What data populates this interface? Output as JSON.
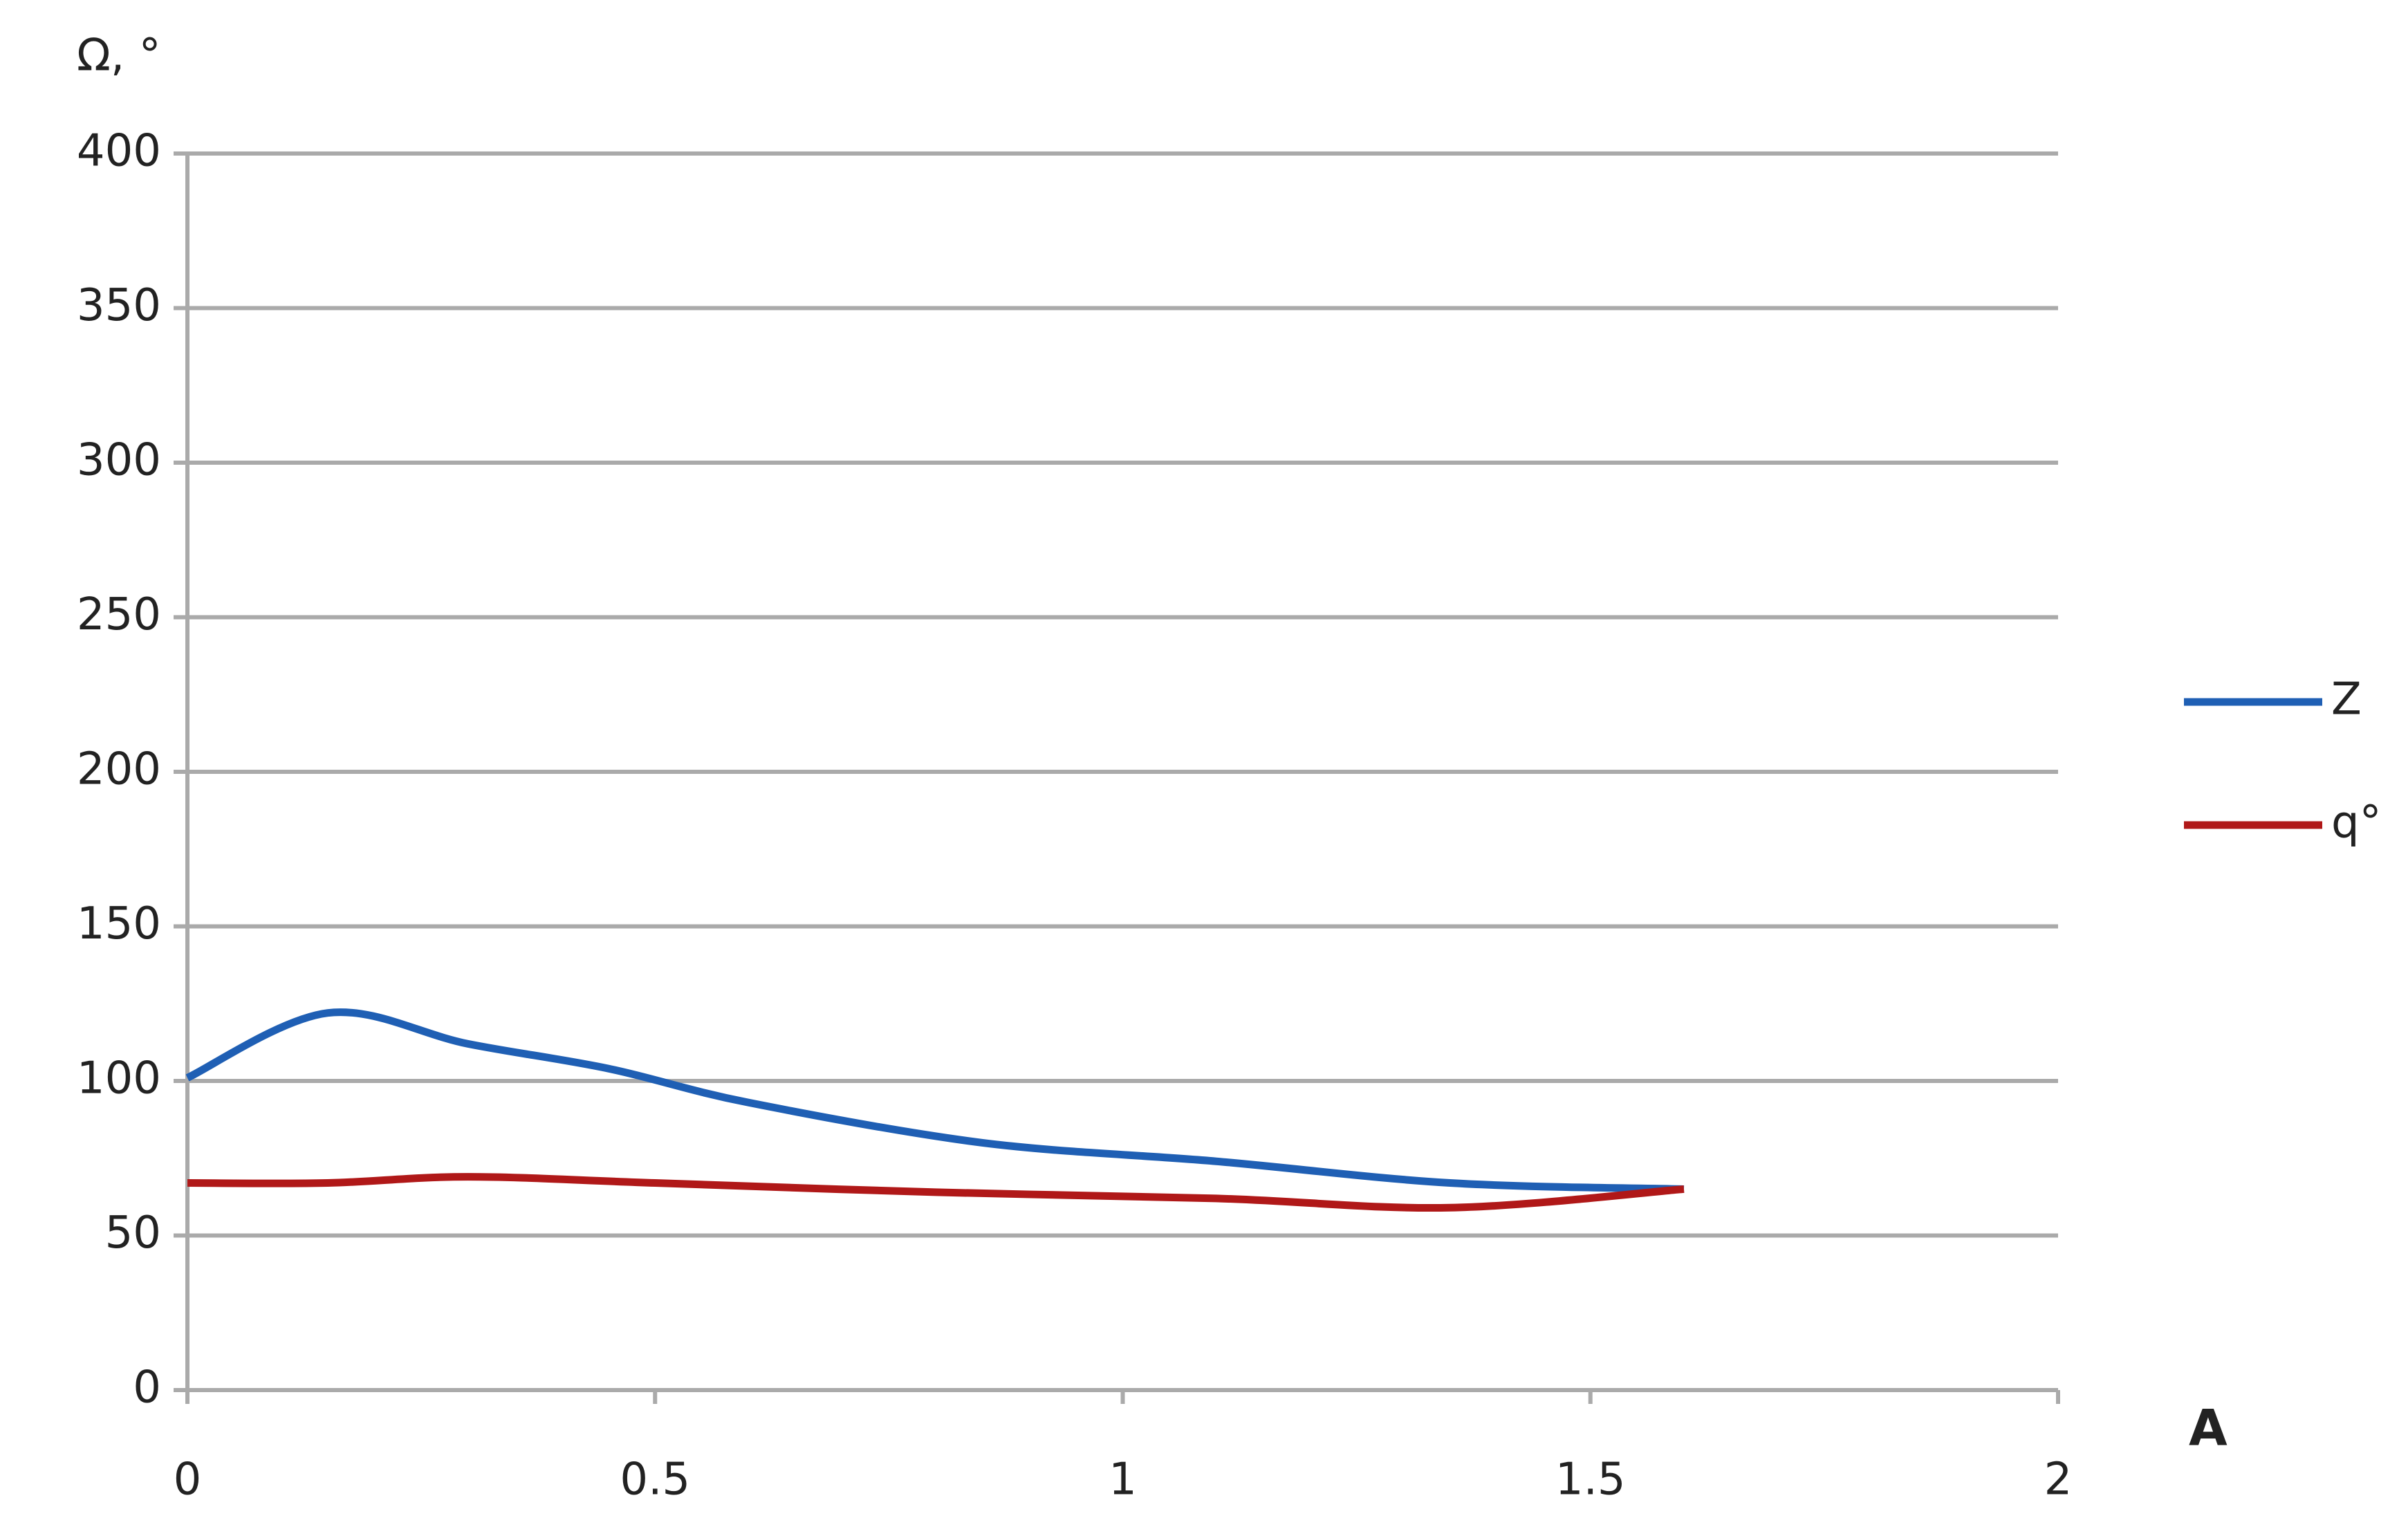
{
  "chart_data": {
    "type": "line",
    "y_label": "Ω, °",
    "x_label": "A",
    "xlim": [
      0,
      2
    ],
    "xticks": [
      0,
      0.5,
      1,
      1.5,
      2
    ],
    "ylim": [
      0,
      400
    ],
    "yticks": [
      0,
      50,
      100,
      150,
      200,
      250,
      300,
      350,
      400
    ],
    "grid": true,
    "legend": "right",
    "series": [
      {
        "name": "Z",
        "color": "#1f5fb4",
        "x": [
          0,
          0.15,
          0.3,
          0.45,
          0.6,
          0.85,
          1.1,
          1.35,
          1.6
        ],
        "values": [
          101,
          122,
          112,
          104,
          93,
          80,
          74,
          67,
          65
        ]
      },
      {
        "name": "q°",
        "color": "#b01818",
        "x": [
          0,
          0.15,
          0.3,
          0.5,
          0.8,
          1.1,
          1.35,
          1.6
        ],
        "values": [
          67,
          67,
          69,
          67,
          64,
          62,
          59,
          65
        ]
      }
    ]
  }
}
